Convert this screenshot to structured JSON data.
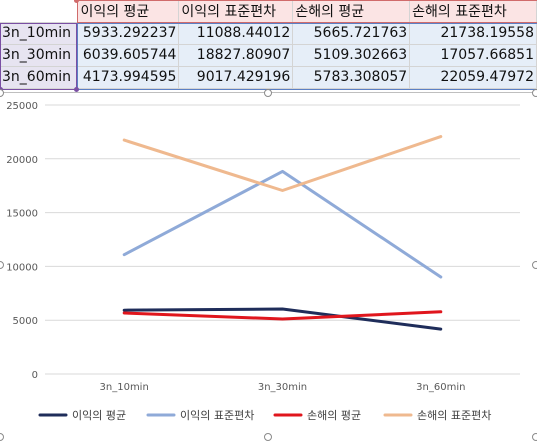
{
  "table": {
    "headers": [
      "이익의 평균",
      "이익의 표준편차",
      "손해의 평균",
      "손해의 표준편차"
    ],
    "rows": [
      {
        "label": "3n_10min",
        "values": [
          "5933.292237",
          "11088.44012",
          "5665.721763",
          "21738.19558"
        ]
      },
      {
        "label": "3n_30min",
        "values": [
          "6039.605744",
          "18827.80907",
          "5109.302663",
          "17057.66851"
        ]
      },
      {
        "label": "3n_60min",
        "values": [
          "4173.994595",
          "9017.429196",
          "5783.308057",
          "22059.47972"
        ]
      }
    ]
  },
  "colors": {
    "header_fill": "#fbe4e4",
    "row_label_fill": "#e7e4f1",
    "value_fill": "#e6eef8"
  },
  "chart_data": {
    "type": "line",
    "categories": [
      "3n_10min",
      "3n_30min",
      "3n_60min"
    ],
    "yticks": [
      "0",
      "5000",
      "10000",
      "15000",
      "20000",
      "25000"
    ],
    "ylim": [
      0,
      25000
    ],
    "grid": true,
    "legend_position": "bottom",
    "series": [
      {
        "name": "이익의 평균",
        "color": "#1f2d5a",
        "values": [
          5933.292237,
          6039.605744,
          4173.994595
        ]
      },
      {
        "name": "이익의 표준편차",
        "color": "#8faad8",
        "values": [
          11088.44012,
          18827.80907,
          9017.429196
        ]
      },
      {
        "name": "손해의 평균",
        "color": "#e0161d",
        "values": [
          5665.721763,
          5109.302663,
          5783.308057
        ]
      },
      {
        "name": "손해의 표준편차",
        "color": "#efb98f",
        "values": [
          21738.19558,
          17057.66851,
          22059.47972
        ]
      }
    ]
  }
}
